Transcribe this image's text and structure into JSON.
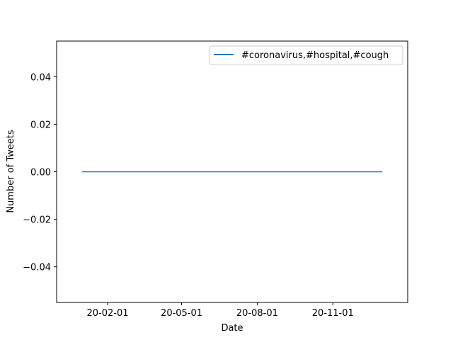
{
  "chart_data": {
    "type": "line",
    "xlabel": "Date",
    "ylabel": "Number of Tweets",
    "x_tick_labels": [
      "20-02-01",
      "20-05-01",
      "20-08-01",
      "20-11-01"
    ],
    "x_tick_dates": [
      "2020-02-01",
      "2020-05-01",
      "2020-08-01",
      "2020-11-01"
    ],
    "y_tick_labels": [
      "0.04",
      "0.02",
      "0.00",
      "−0.02",
      "−0.04"
    ],
    "y_tick_values": [
      0.04,
      0.02,
      0.0,
      -0.02,
      -0.04
    ],
    "xlim": [
      "2019-12-01",
      "2021-01-31"
    ],
    "ylim": [
      -0.055,
      0.055
    ],
    "grid": false,
    "legend_position": "top-right",
    "series": [
      {
        "name": "#coronavirus,#hospital,#cough",
        "color": "#1f77b4",
        "x": [
          "2020-01-01",
          "2020-12-31"
        ],
        "y": [
          0,
          0
        ]
      }
    ]
  }
}
